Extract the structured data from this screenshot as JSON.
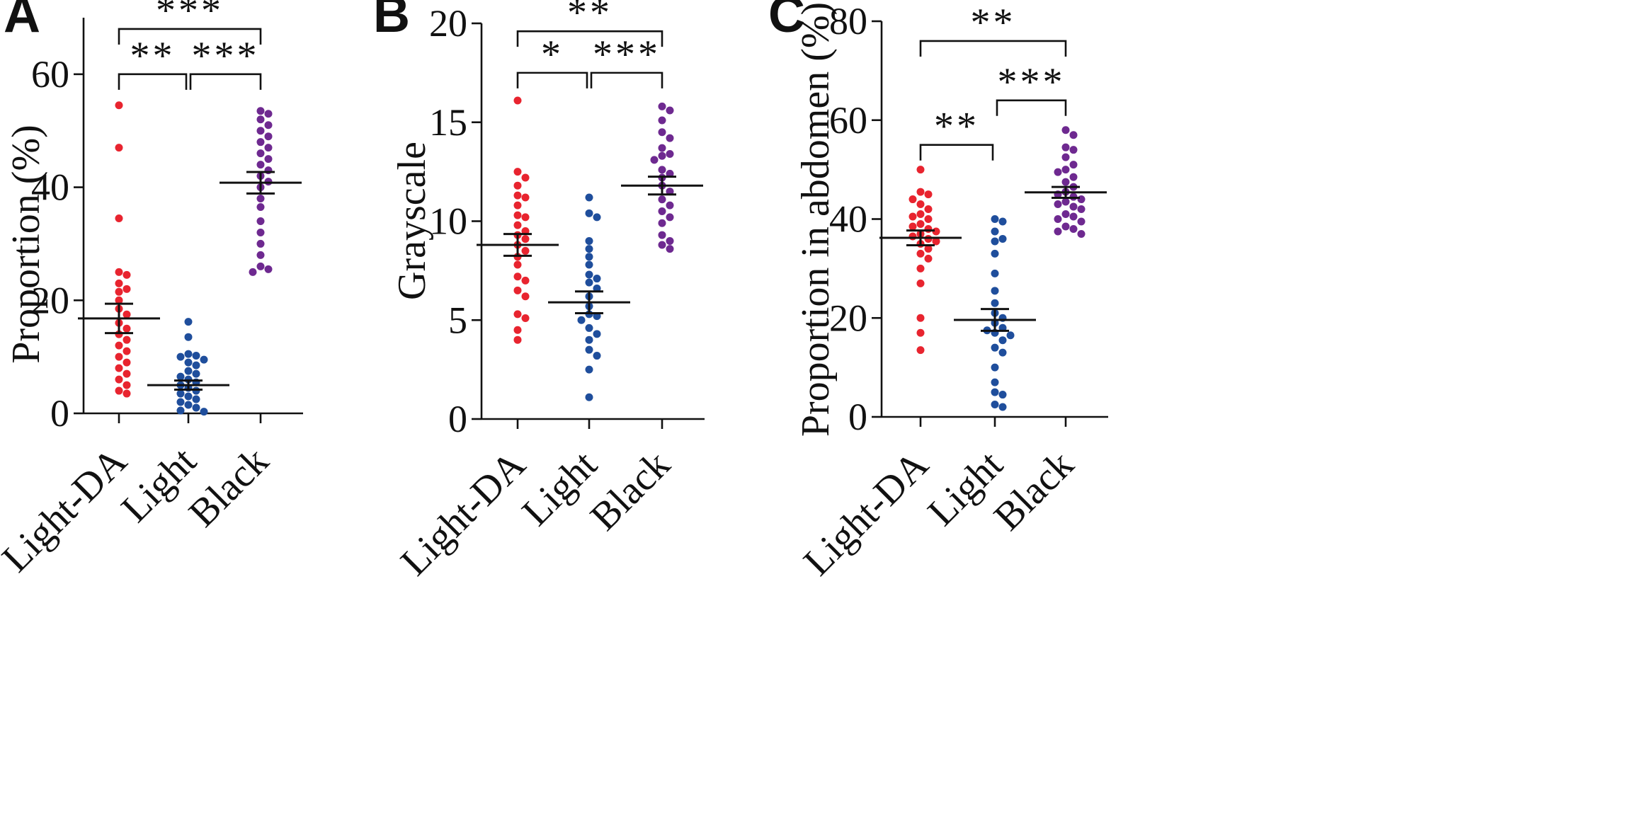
{
  "colors": {
    "red": "#e8242f",
    "blue": "#1f4e9c",
    "purple": "#6e2990",
    "axis": "#111111"
  },
  "chart_data": [
    {
      "type": "scatter",
      "panel_label": "A",
      "title": "",
      "xlabel": "",
      "ylabel": "Proportion (%)",
      "ylim": [
        0,
        70
      ],
      "yticks": [
        0,
        20,
        40,
        60
      ],
      "ytick_labels": [
        "0",
        "20",
        "40",
        "60"
      ],
      "categories": [
        "Light-DA",
        "Light",
        "Black"
      ],
      "series": [
        {
          "name": "Light-DA",
          "color": "red",
          "values": [
            54.5,
            47,
            34.5,
            25,
            24.5,
            23,
            22,
            21.5,
            20,
            18.5,
            17.5,
            16,
            15,
            14,
            13,
            12,
            11,
            10,
            9,
            8,
            7,
            6,
            5,
            4,
            3.5
          ],
          "mean": 16.8,
          "sem": 2.6
        },
        {
          "name": "Light",
          "color": "blue",
          "values": [
            16.2,
            13.5,
            10.5,
            10.2,
            10,
            9.5,
            9,
            8.5,
            7.5,
            7,
            6.5,
            6,
            5.5,
            5,
            4.5,
            4,
            3.5,
            3,
            2.5,
            2,
            1.5,
            1,
            0.5,
            0.3
          ],
          "mean": 5,
          "sem": 0.8
        },
        {
          "name": "Black",
          "color": "purple",
          "values": [
            53.5,
            53,
            52,
            51,
            50,
            49,
            48,
            47,
            46,
            45,
            44,
            43,
            42,
            41,
            40,
            38,
            36.5,
            34,
            32,
            30,
            28,
            26,
            25.5,
            25
          ],
          "mean": 40.8,
          "sem": 1.9
        }
      ],
      "significance": [
        {
          "from": "Light-DA",
          "to": "Light",
          "level": 60,
          "label": "**"
        },
        {
          "from": "Light",
          "to": "Black",
          "level": 60,
          "label": "***"
        },
        {
          "from": "Light-DA",
          "to": "Black",
          "level": 68,
          "label": "***"
        }
      ]
    },
    {
      "type": "scatter",
      "panel_label": "B",
      "title": "",
      "xlabel": "",
      "ylabel": "Grayscale",
      "ylim": [
        0,
        20
      ],
      "yticks": [
        0,
        5,
        10,
        15,
        20
      ],
      "ytick_labels": [
        "0",
        "5",
        "10",
        "15",
        "20"
      ],
      "categories": [
        "Light-DA",
        "Light",
        "Black"
      ],
      "series": [
        {
          "name": "Light-DA",
          "color": "red",
          "values": [
            16.1,
            12.5,
            12.2,
            11.8,
            11.3,
            11.2,
            10.8,
            10.3,
            10.2,
            9.8,
            9.5,
            9.3,
            9.1,
            8.8,
            8.5,
            8.2,
            7.8,
            7.2,
            7,
            6.5,
            6.2,
            5.3,
            5.1,
            4.5,
            4
          ],
          "mean": 8.8,
          "sem": 0.55
        },
        {
          "name": "Light",
          "color": "blue",
          "values": [
            11.2,
            10.4,
            10.2,
            9,
            8.6,
            8.2,
            7.8,
            7.3,
            7.1,
            6.9,
            6.6,
            6.2,
            5.7,
            5.3,
            5.2,
            5,
            4.6,
            4.3,
            4,
            3.5,
            3.2,
            2.5,
            1.1
          ],
          "mean": 5.9,
          "sem": 0.55
        },
        {
          "name": "Black",
          "color": "purple",
          "values": [
            15.8,
            15.6,
            15.1,
            14.5,
            14.2,
            13.7,
            13.4,
            13.3,
            13.1,
            12.6,
            12.4,
            12.2,
            11.8,
            11.5,
            11.1,
            10.8,
            10.5,
            10.2,
            9.9,
            9.3,
            9,
            8.8,
            8.6
          ],
          "mean": 11.8,
          "sem": 0.45
        }
      ],
      "significance": [
        {
          "from": "Light-DA",
          "to": "Light",
          "level": 17.5,
          "label": "*"
        },
        {
          "from": "Light",
          "to": "Black",
          "level": 17.5,
          "label": "***"
        },
        {
          "from": "Light-DA",
          "to": "Black",
          "level": 19.6,
          "label": "**"
        }
      ]
    },
    {
      "type": "scatter",
      "panel_label": "C",
      "title": "",
      "xlabel": "",
      "ylabel": "Proportion in abdomen (%)",
      "ylim": [
        0,
        80
      ],
      "yticks": [
        0,
        20,
        40,
        60,
        80
      ],
      "ytick_labels": [
        "0",
        "20",
        "40",
        "60",
        "80"
      ],
      "categories": [
        "Light-DA",
        "Light",
        "Black"
      ],
      "series": [
        {
          "name": "Light-DA",
          "color": "red",
          "values": [
            50,
            45.5,
            45,
            44,
            43,
            42,
            41,
            40.5,
            40,
            39,
            38.5,
            38,
            37.5,
            37,
            36.5,
            36,
            35.5,
            35,
            34,
            33,
            32,
            30,
            27,
            20,
            17,
            13.5
          ],
          "mean": 36.2,
          "sem": 1.5
        },
        {
          "name": "Light",
          "color": "blue",
          "values": [
            40,
            39.5,
            37.5,
            36,
            35.5,
            33,
            29,
            25.5,
            23,
            21,
            20,
            19,
            18,
            17.5,
            17,
            16.5,
            15.5,
            14,
            13,
            10,
            7,
            5,
            4.5,
            2.5,
            2
          ],
          "mean": 19.6,
          "sem": 2.2
        },
        {
          "name": "Black",
          "color": "purple",
          "values": [
            58,
            57,
            54.5,
            54,
            52.5,
            51,
            50,
            49.5,
            48.5,
            47.5,
            46.5,
            45.5,
            45,
            44.5,
            44,
            43.5,
            43,
            42.5,
            42,
            41,
            40.5,
            40,
            39.5,
            38.5,
            38,
            37.5,
            37
          ],
          "mean": 45.4,
          "sem": 1.1
        }
      ],
      "significance": [
        {
          "from": "Light-DA",
          "to": "Light",
          "level": 55,
          "label": "**"
        },
        {
          "from": "Light",
          "to": "Black",
          "level": 64,
          "label": "***"
        },
        {
          "from": "Light-DA",
          "to": "Black",
          "level": 76,
          "label": "**"
        }
      ]
    }
  ]
}
